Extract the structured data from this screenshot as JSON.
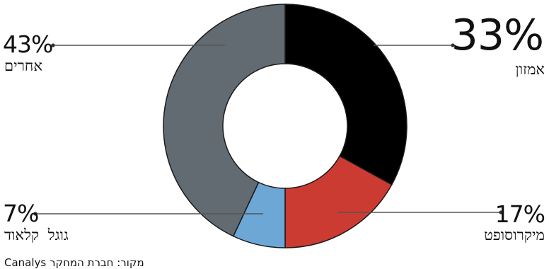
{
  "chart_data": {
    "type": "pie",
    "donut": true,
    "start_angle_deg": 0,
    "direction": "clockwise",
    "slices": [
      {
        "value": 33,
        "percent_label": "33%",
        "label": "אמזון",
        "color": "#000000"
      },
      {
        "value": 17,
        "percent_label": "17%",
        "label": "מיקרוסופט",
        "color": "#cc3b32"
      },
      {
        "value": 7,
        "percent_label": "7%",
        "label": "גוגל קלאוד",
        "color": "#6da7d6"
      },
      {
        "value": 43,
        "percent_label": "43%",
        "label": "אחרים",
        "color": "#626b72"
      }
    ],
    "source": "מקור: חברת המחקר Canalys"
  }
}
